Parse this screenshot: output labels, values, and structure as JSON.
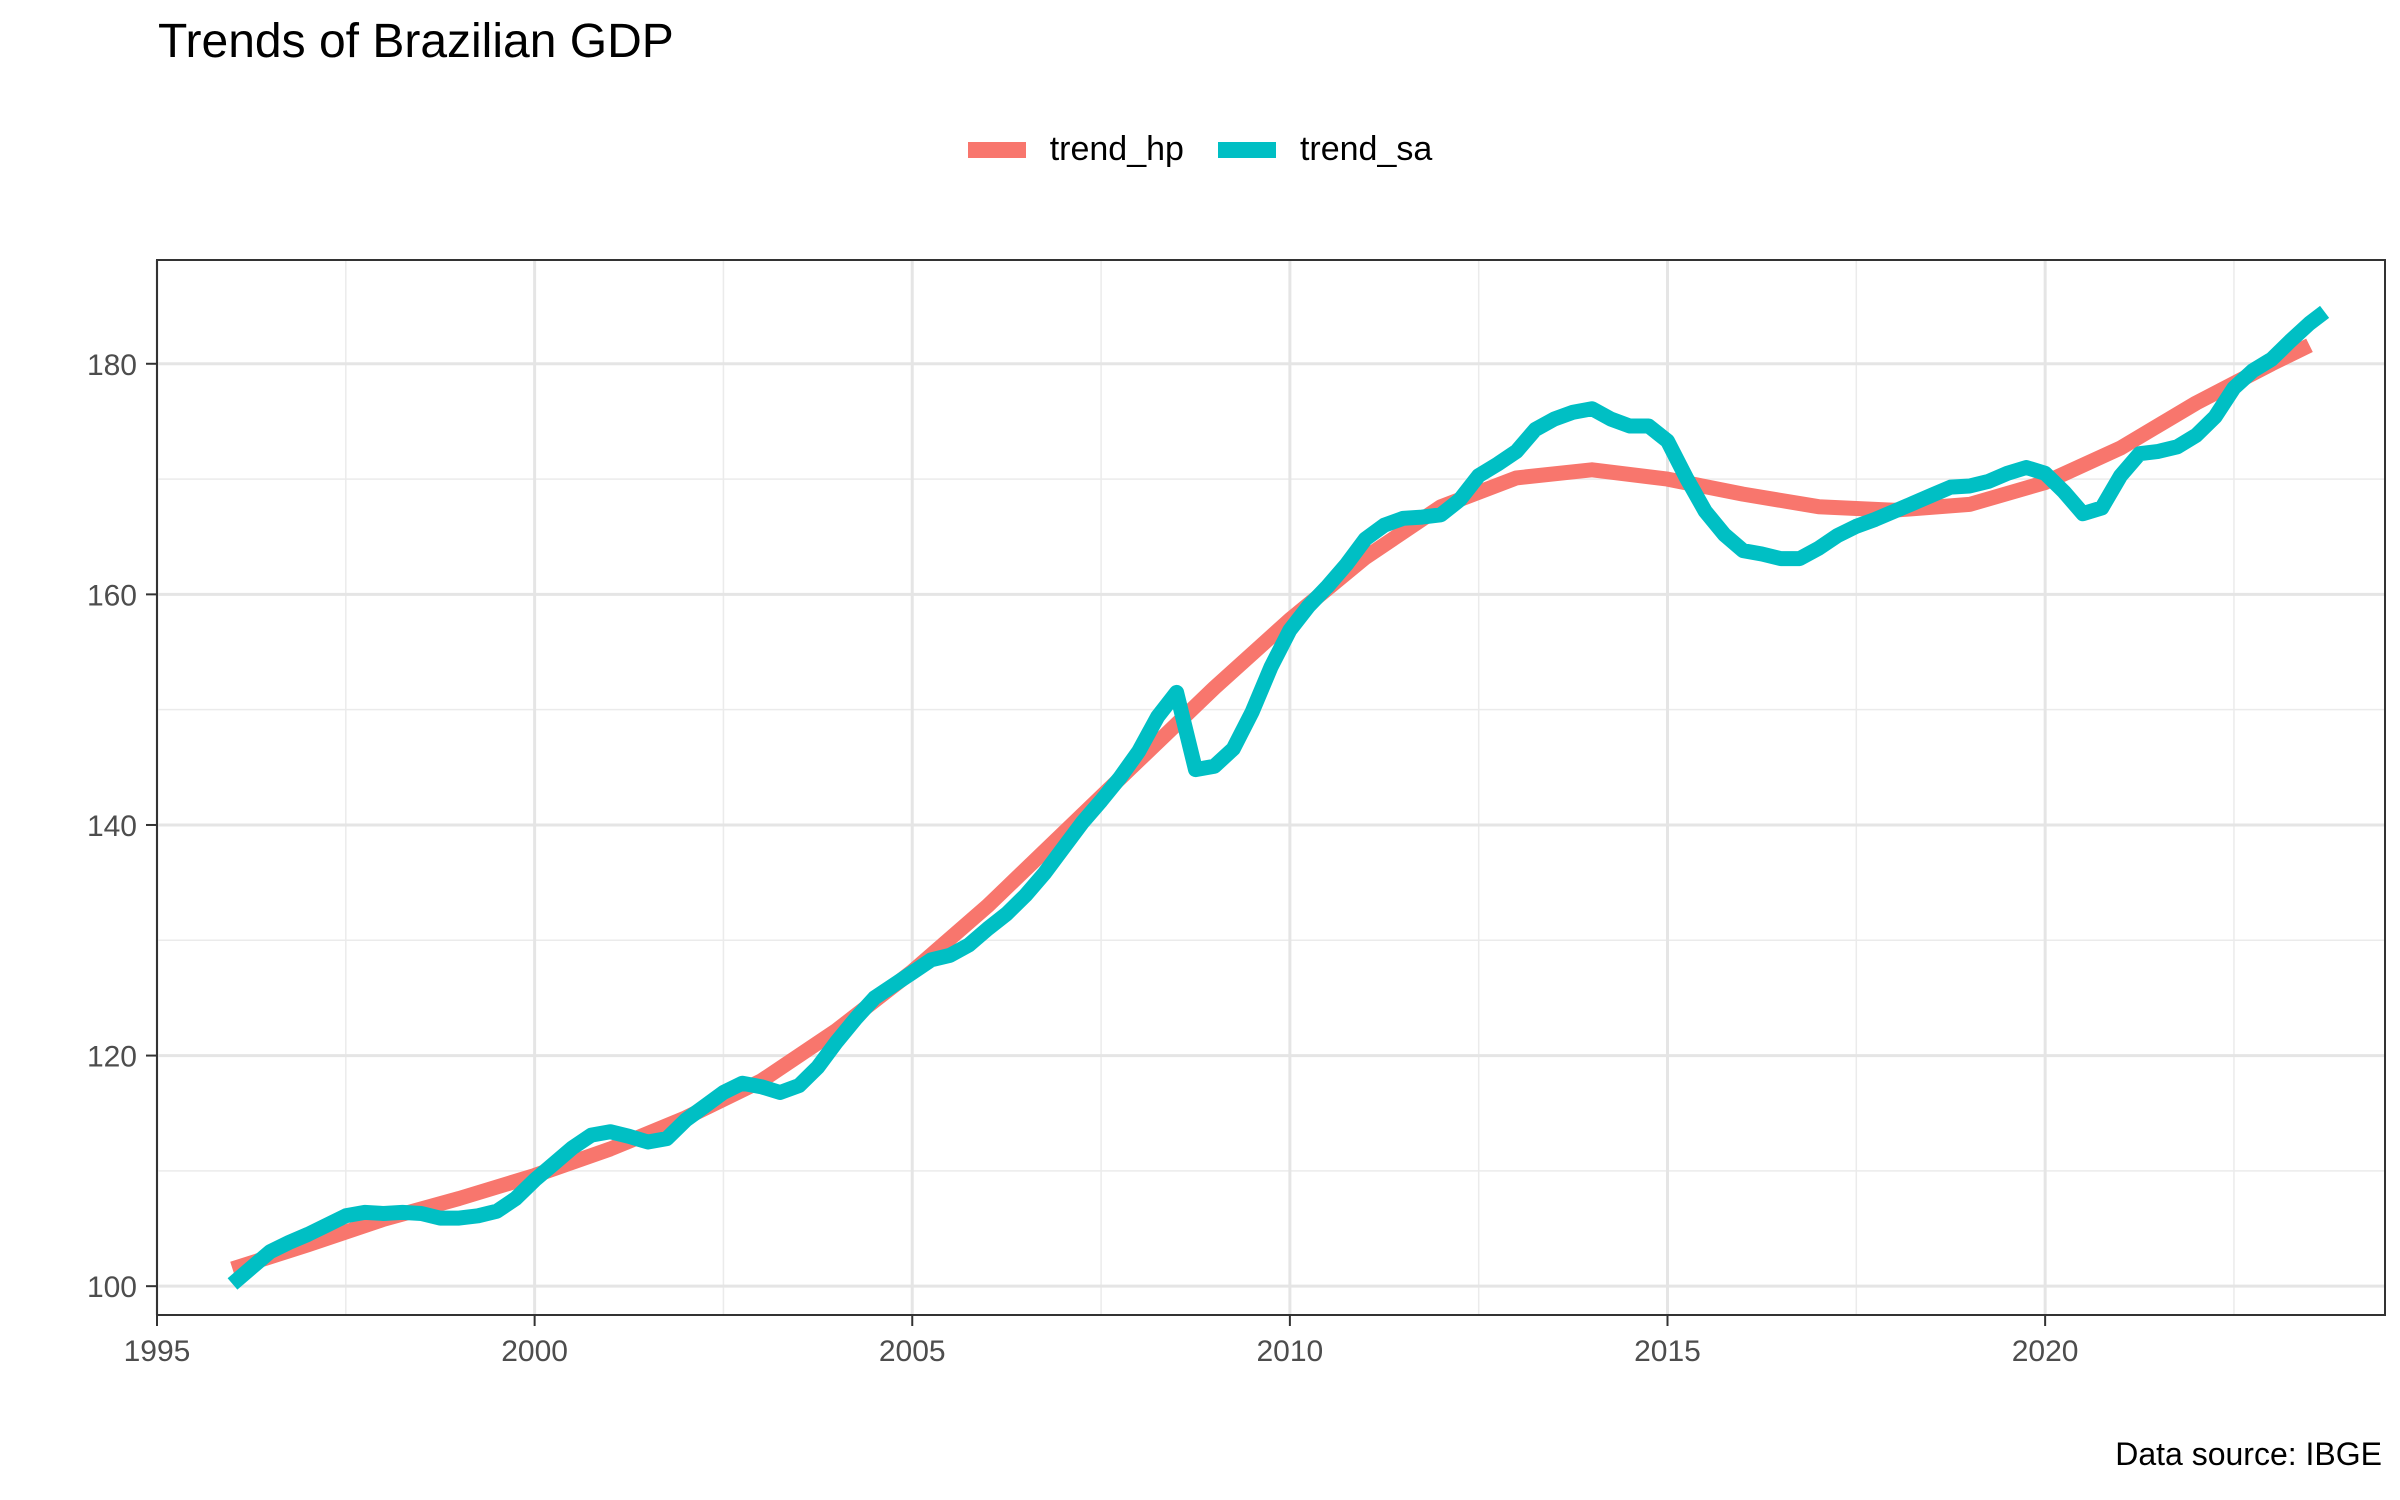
{
  "chart_data": {
    "type": "line",
    "title": "Trends of Brazilian GDP",
    "caption": "Data source: IBGE",
    "xlabel": "",
    "ylabel": "",
    "xlim": [
      1995,
      2024.5
    ],
    "ylim": [
      97.5,
      189
    ],
    "x_ticks": [
      1995,
      2000,
      2005,
      2010,
      2015,
      2020
    ],
    "y_ticks": [
      100,
      120,
      140,
      160,
      180
    ],
    "grid": true,
    "legend_position": "top",
    "series": [
      {
        "name": "trend_hp",
        "color": "#F8766D",
        "points": [
          [
            1996.0,
            101.5
          ],
          [
            1997.0,
            103.6
          ],
          [
            1998.0,
            105.8
          ],
          [
            1999.0,
            107.6
          ],
          [
            2000.0,
            109.6
          ],
          [
            2001.0,
            111.9
          ],
          [
            2002.0,
            114.6
          ],
          [
            2003.0,
            117.8
          ],
          [
            2004.0,
            122.2
          ],
          [
            2005.0,
            127.3
          ],
          [
            2006.0,
            133.0
          ],
          [
            2007.0,
            139.3
          ],
          [
            2008.0,
            145.6
          ],
          [
            2009.0,
            151.9
          ],
          [
            2010.0,
            157.8
          ],
          [
            2011.0,
            163.2
          ],
          [
            2012.0,
            167.6
          ],
          [
            2013.0,
            170.1
          ],
          [
            2014.0,
            170.8
          ],
          [
            2015.0,
            170.0
          ],
          [
            2016.0,
            168.7
          ],
          [
            2017.0,
            167.6
          ],
          [
            2018.0,
            167.3
          ],
          [
            2019.0,
            167.8
          ],
          [
            2020.0,
            169.7
          ],
          [
            2021.0,
            172.7
          ],
          [
            2022.0,
            176.6
          ],
          [
            2023.0,
            180.0
          ],
          [
            2023.5,
            181.6
          ]
        ]
      },
      {
        "name": "trend_sa",
        "color": "#00BFC4",
        "points": [
          [
            1996.0,
            100.2
          ],
          [
            1996.25,
            101.6
          ],
          [
            1996.5,
            103.0
          ],
          [
            1996.75,
            103.8
          ],
          [
            1997.0,
            104.5
          ],
          [
            1997.25,
            105.3
          ],
          [
            1997.5,
            106.1
          ],
          [
            1997.75,
            106.4
          ],
          [
            1998.0,
            106.3
          ],
          [
            1998.25,
            106.4
          ],
          [
            1998.5,
            106.3
          ],
          [
            1998.75,
            105.9
          ],
          [
            1999.0,
            105.9
          ],
          [
            1999.25,
            106.1
          ],
          [
            1999.5,
            106.5
          ],
          [
            1999.75,
            107.6
          ],
          [
            2000.0,
            109.2
          ],
          [
            2000.25,
            110.6
          ],
          [
            2000.5,
            112.0
          ],
          [
            2000.75,
            113.1
          ],
          [
            2001.0,
            113.4
          ],
          [
            2001.25,
            113.0
          ],
          [
            2001.5,
            112.5
          ],
          [
            2001.75,
            112.8
          ],
          [
            2002.0,
            114.4
          ],
          [
            2002.25,
            115.6
          ],
          [
            2002.5,
            116.8
          ],
          [
            2002.75,
            117.6
          ],
          [
            2003.0,
            117.3
          ],
          [
            2003.25,
            116.8
          ],
          [
            2003.5,
            117.4
          ],
          [
            2003.75,
            119.0
          ],
          [
            2004.0,
            121.2
          ],
          [
            2004.25,
            123.2
          ],
          [
            2004.5,
            125.0
          ],
          [
            2004.75,
            126.1
          ],
          [
            2005.0,
            127.2
          ],
          [
            2005.25,
            128.3
          ],
          [
            2005.5,
            128.7
          ],
          [
            2005.75,
            129.6
          ],
          [
            2006.0,
            131.0
          ],
          [
            2006.25,
            132.3
          ],
          [
            2006.5,
            133.9
          ],
          [
            2006.75,
            135.8
          ],
          [
            2007.0,
            138.0
          ],
          [
            2007.25,
            140.2
          ],
          [
            2007.5,
            142.1
          ],
          [
            2007.75,
            144.1
          ],
          [
            2008.0,
            146.4
          ],
          [
            2008.25,
            149.4
          ],
          [
            2008.5,
            151.5
          ],
          [
            2008.75,
            144.8
          ],
          [
            2009.0,
            145.1
          ],
          [
            2009.25,
            146.6
          ],
          [
            2009.5,
            149.8
          ],
          [
            2009.75,
            153.7
          ],
          [
            2010.0,
            156.9
          ],
          [
            2010.25,
            159.0
          ],
          [
            2010.5,
            160.7
          ],
          [
            2010.75,
            162.6
          ],
          [
            2011.0,
            164.8
          ],
          [
            2011.25,
            166.0
          ],
          [
            2011.5,
            166.6
          ],
          [
            2011.75,
            166.7
          ],
          [
            2012.0,
            166.9
          ],
          [
            2012.25,
            168.2
          ],
          [
            2012.5,
            170.3
          ],
          [
            2012.75,
            171.3
          ],
          [
            2013.0,
            172.4
          ],
          [
            2013.25,
            174.3
          ],
          [
            2013.5,
            175.2
          ],
          [
            2013.75,
            175.8
          ],
          [
            2014.0,
            176.1
          ],
          [
            2014.25,
            175.2
          ],
          [
            2014.5,
            174.6
          ],
          [
            2014.75,
            174.6
          ],
          [
            2015.0,
            173.3
          ],
          [
            2015.25,
            170.1
          ],
          [
            2015.5,
            167.2
          ],
          [
            2015.75,
            165.2
          ],
          [
            2016.0,
            163.8
          ],
          [
            2016.25,
            163.5
          ],
          [
            2016.5,
            163.1
          ],
          [
            2016.75,
            163.1
          ],
          [
            2017.0,
            164.0
          ],
          [
            2017.25,
            165.1
          ],
          [
            2017.5,
            165.9
          ],
          [
            2017.75,
            166.5
          ],
          [
            2018.0,
            167.2
          ],
          [
            2018.25,
            167.9
          ],
          [
            2018.5,
            168.6
          ],
          [
            2018.75,
            169.3
          ],
          [
            2019.0,
            169.4
          ],
          [
            2019.25,
            169.8
          ],
          [
            2019.5,
            170.5
          ],
          [
            2019.75,
            171.0
          ],
          [
            2020.0,
            170.5
          ],
          [
            2020.25,
            168.9
          ],
          [
            2020.5,
            167.0
          ],
          [
            2020.75,
            167.5
          ],
          [
            2021.0,
            170.3
          ],
          [
            2021.25,
            172.2
          ],
          [
            2021.5,
            172.4
          ],
          [
            2021.75,
            172.8
          ],
          [
            2022.0,
            173.8
          ],
          [
            2022.25,
            175.4
          ],
          [
            2022.5,
            177.9
          ],
          [
            2022.75,
            179.4
          ],
          [
            2023.0,
            180.4
          ],
          [
            2023.25,
            182.0
          ],
          [
            2023.5,
            183.5
          ],
          [
            2023.7,
            184.5
          ]
        ]
      }
    ]
  }
}
